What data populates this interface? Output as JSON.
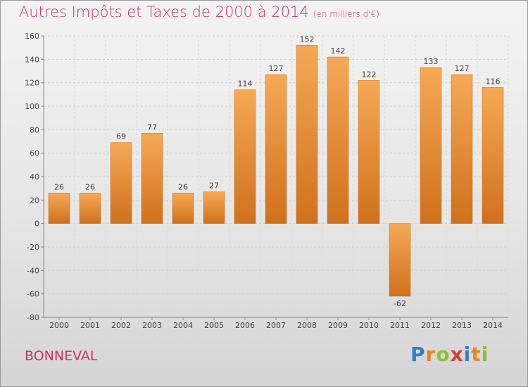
{
  "title": "Autres Impôts et Taxes de 2000 à 2014",
  "subtitle": "(en milliers d'€)",
  "commune": "BONNEVAL",
  "brand": {
    "letters": [
      "P",
      "r",
      "o",
      "x",
      "i",
      "t",
      "i"
    ],
    "colors": [
      "#2f7fc8",
      "#e8851e",
      "#8fbf2a",
      "#d63c3c",
      "#2f7fc8",
      "#e8851e",
      "#8fbf2a"
    ]
  },
  "colors": {
    "bar": "#e88a2a",
    "bar_light": "#f6a955",
    "bar_dark": "#d0701c",
    "title": "#cc3366"
  },
  "chart_data": {
    "type": "bar",
    "categories": [
      "2000",
      "2001",
      "2002",
      "2003",
      "2004",
      "2005",
      "2006",
      "2007",
      "2008",
      "2009",
      "2010",
      "2011",
      "2012",
      "2013",
      "2014"
    ],
    "values": [
      26,
      26,
      69,
      77,
      26,
      27,
      114,
      127,
      152,
      142,
      122,
      -62,
      133,
      127,
      116
    ],
    "ylim": [
      -80,
      160
    ],
    "yticks": [
      160,
      140,
      120,
      100,
      80,
      60,
      40,
      20,
      0,
      -20,
      -40,
      -60,
      -80
    ],
    "grid": true,
    "title": "Autres Impôts et Taxes de 2000 à 2014",
    "xlabel": "",
    "ylabel": ""
  }
}
